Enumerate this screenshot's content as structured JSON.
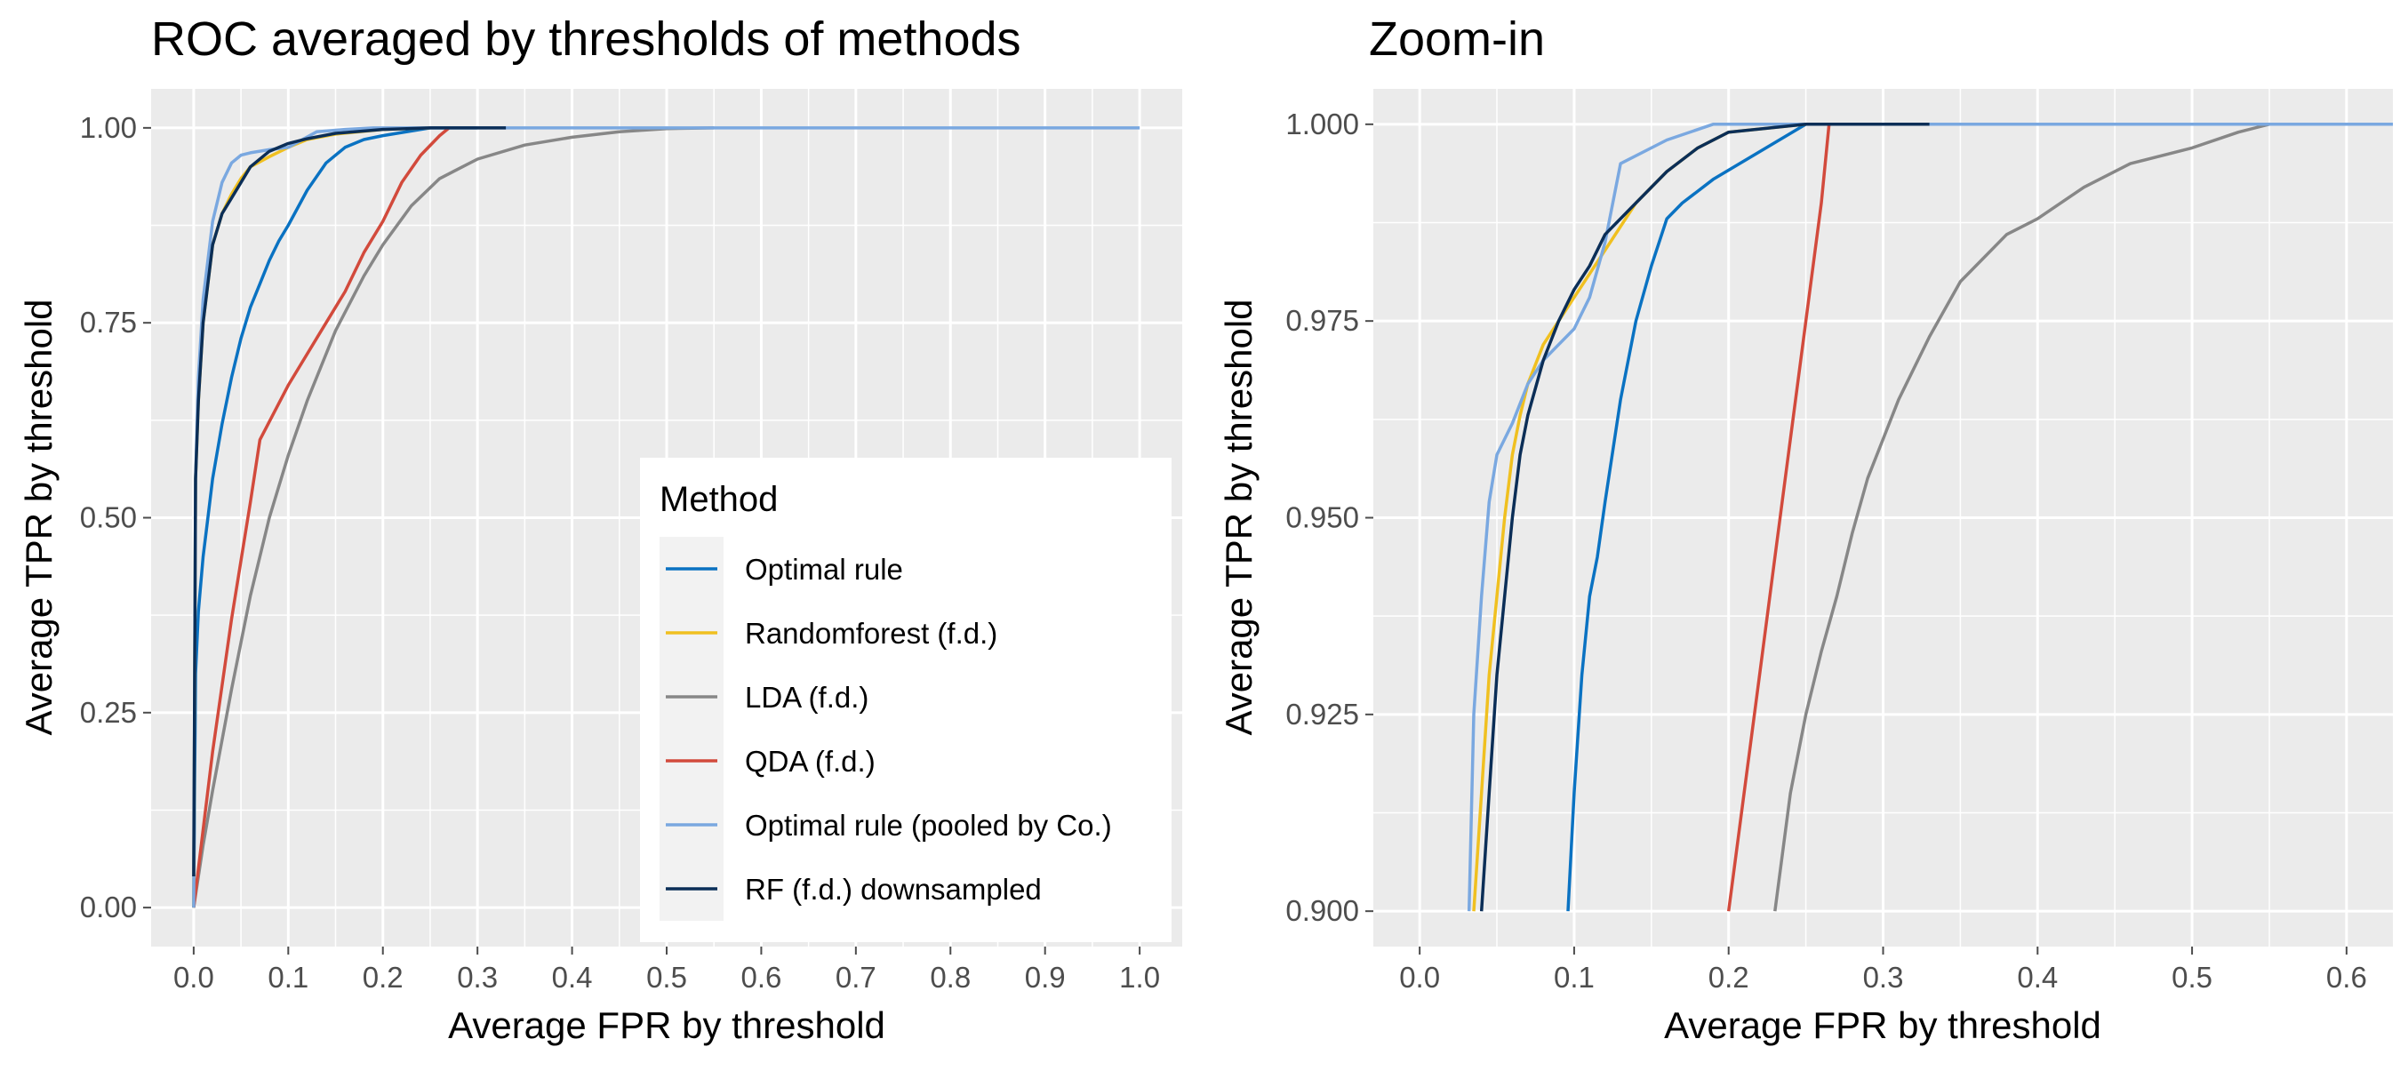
{
  "chart_data": [
    {
      "type": "line",
      "title": "ROC averaged by thresholds of methods",
      "xlabel": "Average FPR by threshold",
      "ylabel": "Average TPR by threshold",
      "xlim": [
        -0.045,
        1.045
      ],
      "ylim": [
        -0.05,
        1.05
      ],
      "x_ticks": [
        "0.0",
        "0.1",
        "0.2",
        "0.3",
        "0.4",
        "0.5",
        "0.6",
        "0.7",
        "0.8",
        "0.9",
        "1.0"
      ],
      "y_ticks": [
        "0.00",
        "0.25",
        "0.50",
        "0.75",
        "1.00"
      ],
      "grid": true,
      "legend": {
        "title": "Method",
        "position": "bottom-right",
        "entries": [
          "Optimal rule",
          "Randomforest (f.d.)",
          "LDA (f.d.)",
          "QDA (f.d.)",
          "Optimal rule (pooled by Co.)",
          "RF (f.d.) downsampled"
        ]
      },
      "series": [
        {
          "name": "Optimal rule",
          "color": "#0a72c2",
          "x": [
            0,
            0.002,
            0.005,
            0.01,
            0.015,
            0.02,
            0.03,
            0.04,
            0.05,
            0.06,
            0.07,
            0.08,
            0.09,
            0.1,
            0.12,
            0.14,
            0.16,
            0.18,
            0.2,
            0.25,
            0.3
          ],
          "y": [
            0,
            0.3,
            0.38,
            0.45,
            0.5,
            0.55,
            0.62,
            0.68,
            0.73,
            0.77,
            0.8,
            0.83,
            0.855,
            0.875,
            0.92,
            0.955,
            0.975,
            0.985,
            0.99,
            1.0,
            1.0
          ]
        },
        {
          "name": "Randomforest (f.d.)",
          "color": "#f0c020",
          "x": [
            0,
            0.002,
            0.005,
            0.01,
            0.02,
            0.03,
            0.04,
            0.05,
            0.06,
            0.08,
            0.1,
            0.12,
            0.15,
            0.2,
            0.25
          ],
          "y": [
            0,
            0.55,
            0.65,
            0.75,
            0.85,
            0.89,
            0.915,
            0.935,
            0.95,
            0.963,
            0.975,
            0.985,
            0.992,
            0.998,
            1.0
          ]
        },
        {
          "name": "LDA (f.d.)",
          "color": "#878787",
          "x": [
            0,
            0.01,
            0.02,
            0.04,
            0.06,
            0.08,
            0.1,
            0.12,
            0.15,
            0.18,
            0.2,
            0.23,
            0.26,
            0.3,
            0.35,
            0.4,
            0.45,
            0.5,
            0.55
          ],
          "y": [
            0,
            0.08,
            0.15,
            0.28,
            0.4,
            0.5,
            0.58,
            0.65,
            0.74,
            0.81,
            0.85,
            0.9,
            0.935,
            0.96,
            0.978,
            0.988,
            0.995,
            0.999,
            1.0
          ]
        },
        {
          "name": "QDA (f.d.)",
          "color": "#d24a3c",
          "x": [
            0,
            0.01,
            0.02,
            0.04,
            0.06,
            0.07,
            0.1,
            0.13,
            0.16,
            0.18,
            0.2,
            0.22,
            0.24,
            0.26,
            0.27
          ],
          "y": [
            0,
            0.1,
            0.2,
            0.37,
            0.52,
            0.6,
            0.67,
            0.73,
            0.79,
            0.84,
            0.88,
            0.93,
            0.965,
            0.99,
            1.0
          ]
        },
        {
          "name": "Optimal rule (pooled by Co.)",
          "color": "#7aa8e0",
          "x": [
            0,
            0.002,
            0.005,
            0.01,
            0.02,
            0.03,
            0.04,
            0.05,
            0.06,
            0.08,
            0.1,
            0.13,
            0.16,
            0.19,
            0.4,
            0.7,
            1.0
          ],
          "y": [
            0,
            0.55,
            0.68,
            0.78,
            0.88,
            0.93,
            0.955,
            0.965,
            0.968,
            0.972,
            0.975,
            0.995,
            0.998,
            1.0,
            1.0,
            1.0,
            1.0
          ]
        },
        {
          "name": "RF (f.d.) downsampled",
          "color": "#0b2e57",
          "x": [
            0,
            0.002,
            0.005,
            0.01,
            0.02,
            0.03,
            0.04,
            0.05,
            0.06,
            0.08,
            0.1,
            0.12,
            0.15,
            0.2,
            0.25,
            0.33
          ],
          "y": [
            0.04,
            0.55,
            0.65,
            0.75,
            0.85,
            0.89,
            0.91,
            0.93,
            0.95,
            0.97,
            0.98,
            0.986,
            0.993,
            0.998,
            1.0,
            1.0
          ]
        }
      ]
    },
    {
      "type": "line",
      "title": "Zoom-in",
      "xlabel": "Average FPR by threshold",
      "ylabel": "Average TPR by threshold",
      "xlim": [
        -0.03,
        0.63
      ],
      "ylim": [
        0.8955,
        1.0045
      ],
      "x_ticks": [
        "0.0",
        "0.1",
        "0.2",
        "0.3",
        "0.4",
        "0.5",
        "0.6"
      ],
      "y_ticks": [
        "0.900",
        "0.925",
        "0.950",
        "0.975",
        "1.000"
      ],
      "grid": true,
      "series": [
        {
          "name": "Optimal rule",
          "color": "#0a72c2",
          "x": [
            0.096,
            0.1,
            0.105,
            0.11,
            0.115,
            0.12,
            0.13,
            0.14,
            0.15,
            0.16,
            0.17,
            0.19,
            0.25,
            0.27
          ],
          "y": [
            0.9,
            0.915,
            0.93,
            0.94,
            0.945,
            0.952,
            0.965,
            0.975,
            0.982,
            0.988,
            0.99,
            0.993,
            1.0,
            1.0
          ]
        },
        {
          "name": "Randomforest (f.d.)",
          "color": "#f0c020",
          "x": [
            0.035,
            0.04,
            0.045,
            0.05,
            0.055,
            0.06,
            0.065,
            0.07,
            0.08,
            0.09,
            0.1,
            0.11,
            0.12,
            0.14,
            0.16,
            0.18,
            0.2,
            0.25
          ],
          "y": [
            0.9,
            0.915,
            0.93,
            0.94,
            0.95,
            0.958,
            0.963,
            0.967,
            0.972,
            0.975,
            0.978,
            0.981,
            0.984,
            0.99,
            0.994,
            0.997,
            0.999,
            1.0
          ]
        },
        {
          "name": "LDA (f.d.)",
          "color": "#878787",
          "x": [
            0.23,
            0.24,
            0.25,
            0.26,
            0.27,
            0.28,
            0.29,
            0.3,
            0.31,
            0.33,
            0.35,
            0.38,
            0.4,
            0.43,
            0.46,
            0.5,
            0.53,
            0.55
          ],
          "y": [
            0.9,
            0.915,
            0.925,
            0.933,
            0.94,
            0.948,
            0.955,
            0.96,
            0.965,
            0.973,
            0.98,
            0.986,
            0.988,
            0.992,
            0.995,
            0.997,
            0.999,
            1.0
          ]
        },
        {
          "name": "QDA (f.d.)",
          "color": "#d24a3c",
          "x": [
            0.2,
            0.21,
            0.22,
            0.23,
            0.24,
            0.25,
            0.26,
            0.265
          ],
          "y": [
            0.9,
            0.915,
            0.93,
            0.945,
            0.96,
            0.975,
            0.99,
            1.0
          ]
        },
        {
          "name": "Optimal rule (pooled by Co.)",
          "color": "#7aa8e0",
          "x": [
            0.032,
            0.035,
            0.04,
            0.045,
            0.05,
            0.055,
            0.06,
            0.07,
            0.08,
            0.09,
            0.1,
            0.11,
            0.12,
            0.13,
            0.16,
            0.19,
            0.4,
            0.63
          ],
          "y": [
            0.9,
            0.925,
            0.94,
            0.952,
            0.958,
            0.96,
            0.962,
            0.967,
            0.97,
            0.972,
            0.974,
            0.978,
            0.985,
            0.995,
            0.998,
            1.0,
            1.0,
            1.0
          ]
        },
        {
          "name": "RF (f.d.) downsampled",
          "color": "#0b2e57",
          "x": [
            0.04,
            0.045,
            0.05,
            0.055,
            0.06,
            0.065,
            0.07,
            0.08,
            0.09,
            0.1,
            0.11,
            0.12,
            0.14,
            0.16,
            0.18,
            0.2,
            0.25,
            0.33
          ],
          "y": [
            0.9,
            0.915,
            0.93,
            0.94,
            0.95,
            0.958,
            0.963,
            0.97,
            0.975,
            0.979,
            0.982,
            0.986,
            0.99,
            0.994,
            0.997,
            0.999,
            1.0,
            1.0
          ]
        }
      ]
    }
  ]
}
